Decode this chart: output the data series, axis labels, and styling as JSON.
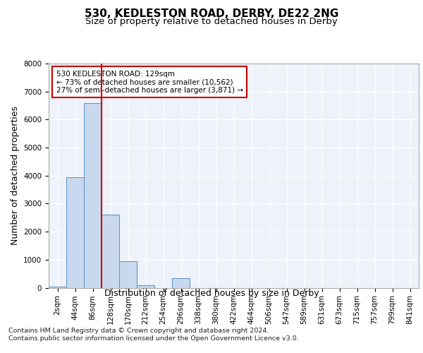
{
  "title": "530, KEDLESTON ROAD, DERBY, DE22 2NG",
  "subtitle": "Size of property relative to detached houses in Derby",
  "xlabel": "Distribution of detached houses by size in Derby",
  "ylabel": "Number of detached properties",
  "bar_labels": [
    "2sqm",
    "44sqm",
    "86sqm",
    "128sqm",
    "170sqm",
    "212sqm",
    "254sqm",
    "296sqm",
    "338sqm",
    "380sqm",
    "422sqm",
    "464sqm",
    "506sqm",
    "547sqm",
    "589sqm",
    "631sqm",
    "673sqm",
    "715sqm",
    "757sqm",
    "799sqm",
    "841sqm"
  ],
  "bar_values": [
    50,
    3950,
    6600,
    2600,
    950,
    100,
    0,
    330,
    0,
    0,
    0,
    0,
    0,
    0,
    0,
    0,
    0,
    0,
    0,
    0,
    0
  ],
  "bar_color": "#c8d9ef",
  "bar_edgecolor": "#5a8fc0",
  "ylim": [
    0,
    8000
  ],
  "marker_index": 2.5,
  "marker_label": "530 KEDLESTON ROAD: 129sqm",
  "annotation_line1": "← 73% of detached houses are smaller (10,562)",
  "annotation_line2": "27% of semi-detached houses are larger (3,871) →",
  "marker_color": "#cc0000",
  "annotation_box_edgecolor": "#cc0000",
  "footer_line1": "Contains HM Land Registry data © Crown copyright and database right 2024.",
  "footer_line2": "Contains public sector information licensed under the Open Government Licence v3.0.",
  "background_color": "#eef2fa",
  "title_fontsize": 11,
  "subtitle_fontsize": 9.5,
  "ylabel_fontsize": 9,
  "xlabel_fontsize": 9,
  "tick_fontsize": 7.5,
  "annotation_fontsize": 7.5,
  "footer_fontsize": 6.8
}
